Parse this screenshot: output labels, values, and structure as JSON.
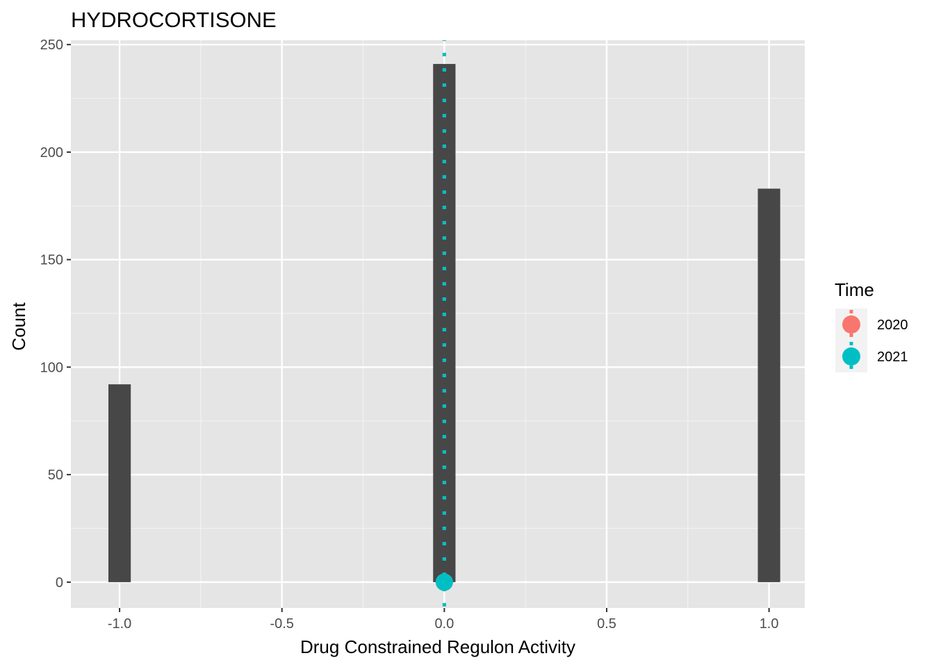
{
  "chart_data": {
    "type": "bar",
    "title": "HYDROCORTISONE",
    "xlabel": "Drug Constrained Regulon Activity",
    "ylabel": "Count",
    "xlim": [
      -1.15,
      1.11
    ],
    "ylim": [
      -12,
      252
    ],
    "x_ticks": [
      -1.0,
      -0.5,
      0.0,
      0.5,
      1.0
    ],
    "x_tick_labels": [
      "-1.0",
      "-0.5",
      "0.0",
      "0.5",
      "1.0"
    ],
    "y_ticks": [
      0,
      50,
      100,
      150,
      200,
      250
    ],
    "y_tick_labels": [
      "0",
      "50",
      "100",
      "150",
      "200",
      "250"
    ],
    "grid": true,
    "bars": [
      {
        "x": -1.0,
        "value": 92
      },
      {
        "x": 0.0,
        "value": 241
      },
      {
        "x": 1.0,
        "value": 183
      }
    ],
    "bar_width": 0.0689,
    "bar_color": "#474747",
    "panel_background": "#e5e5e5",
    "points": [
      {
        "series": "2020",
        "x": 0.0,
        "y": 0
      },
      {
        "series": "2021",
        "x": 0.0,
        "y": 0
      }
    ],
    "vlines": [
      {
        "series": "2020",
        "x": 0.0,
        "style": "dotted"
      },
      {
        "series": "2021",
        "x": 0.0,
        "style": "dotted"
      }
    ],
    "legend": {
      "title": "Time",
      "position": "right",
      "entries": [
        {
          "label": "2020",
          "color": "#F8766D"
        },
        {
          "label": "2021",
          "color": "#00BFC4"
        }
      ]
    }
  }
}
